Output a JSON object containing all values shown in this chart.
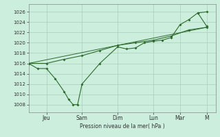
{
  "background_color": "#cceedd",
  "grid_color": "#aaccbb",
  "line_color": "#2d6a2d",
  "xlabel": "Pression niveau de la mer( hPa )",
  "ylim": [
    1006.5,
    1027.5
  ],
  "yticks": [
    1008,
    1010,
    1012,
    1014,
    1016,
    1018,
    1020,
    1022,
    1024,
    1026
  ],
  "xtick_labels": [
    "Jeu",
    "Sam",
    "Dim",
    "Lun",
    "Mar",
    "M"
  ],
  "xtick_positions": [
    2,
    6,
    10,
    14,
    17,
    20
  ],
  "xlim": [
    0,
    21
  ],
  "s1x": [
    0,
    1,
    2,
    3,
    4,
    4.5,
    5,
    5.5,
    6,
    8,
    10,
    11,
    12,
    13,
    14,
    15,
    16,
    17,
    18,
    19,
    20
  ],
  "s1y": [
    1016.0,
    1015.0,
    1015.0,
    1013.0,
    1010.5,
    1009.0,
    1008.0,
    1008.0,
    1012.0,
    1016.0,
    1019.2,
    1018.8,
    1019.0,
    1020.0,
    1020.3,
    1020.5,
    1021.0,
    1023.5,
    1024.5,
    1025.8,
    1026.0
  ],
  "s2x": [
    0,
    2,
    4,
    6,
    8,
    10,
    12,
    14,
    16,
    18,
    20
  ],
  "s2y": [
    1016.0,
    1016.0,
    1016.8,
    1017.5,
    1018.5,
    1019.5,
    1020.0,
    1020.5,
    1021.3,
    1022.5,
    1023.0
  ],
  "s3x": [
    0,
    20
  ],
  "s3y": [
    1016.0,
    1023.0
  ],
  "s4x": [
    19,
    20
  ],
  "s4y": [
    1025.8,
    1023.2
  ]
}
